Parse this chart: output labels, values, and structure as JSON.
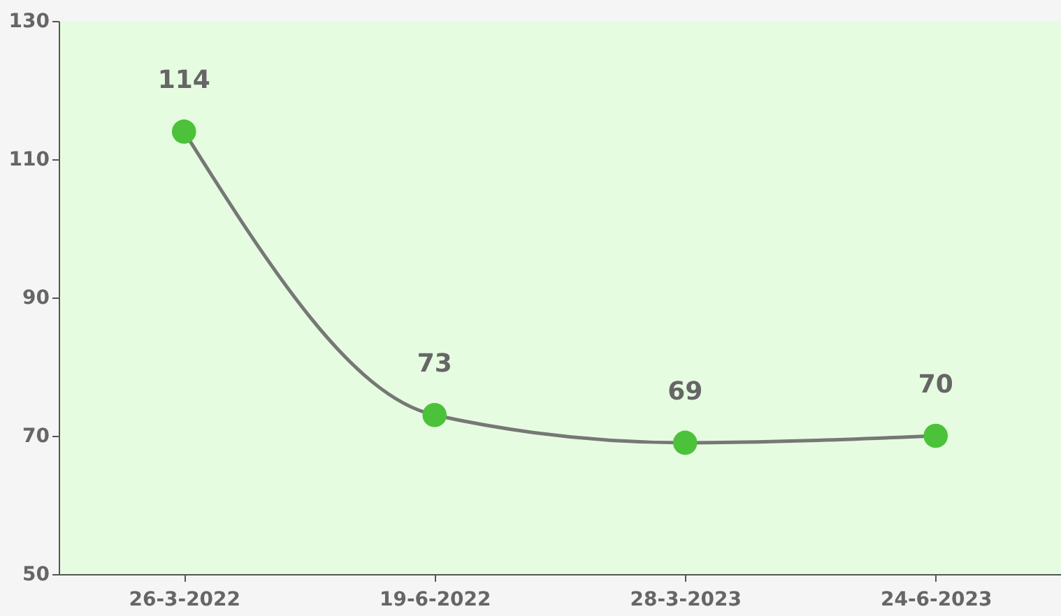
{
  "chart_data": {
    "type": "line",
    "categories": [
      "26-3-2022",
      "19-6-2022",
      "28-3-2023",
      "24-6-2023"
    ],
    "series": [
      {
        "color": "#4cc23a",
        "values": [
          114,
          73,
          69,
          70
        ]
      }
    ],
    "ylim": [
      50,
      130
    ],
    "yticks": [
      50,
      70,
      90,
      110,
      130
    ],
    "data_labels": true,
    "marker": "circle",
    "line_style": "solid",
    "grid": false
  }
}
